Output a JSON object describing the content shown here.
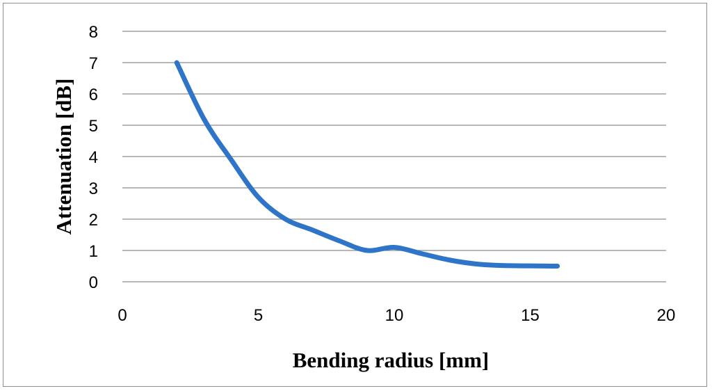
{
  "chart_data": {
    "type": "line",
    "title": "",
    "xlabel": "Bending radius [mm]",
    "ylabel": "Attenuation [dB]",
    "xlim": [
      0,
      20
    ],
    "ylim": [
      0,
      8
    ],
    "x_ticks": [
      0,
      5,
      10,
      15,
      20
    ],
    "y_ticks": [
      0,
      1,
      2,
      3,
      4,
      5,
      6,
      7,
      8
    ],
    "grid": "horizontal",
    "legend": "none",
    "series": [
      {
        "color": "#2e75c9",
        "smooth": true,
        "x": [
          2,
          3,
          4,
          5,
          6,
          7,
          8,
          9,
          10,
          11,
          12,
          13,
          14,
          16
        ],
        "y": [
          7.0,
          5.2,
          3.9,
          2.7,
          2.0,
          1.65,
          1.3,
          1.0,
          1.1,
          0.9,
          0.7,
          0.57,
          0.52,
          0.5
        ]
      }
    ]
  }
}
